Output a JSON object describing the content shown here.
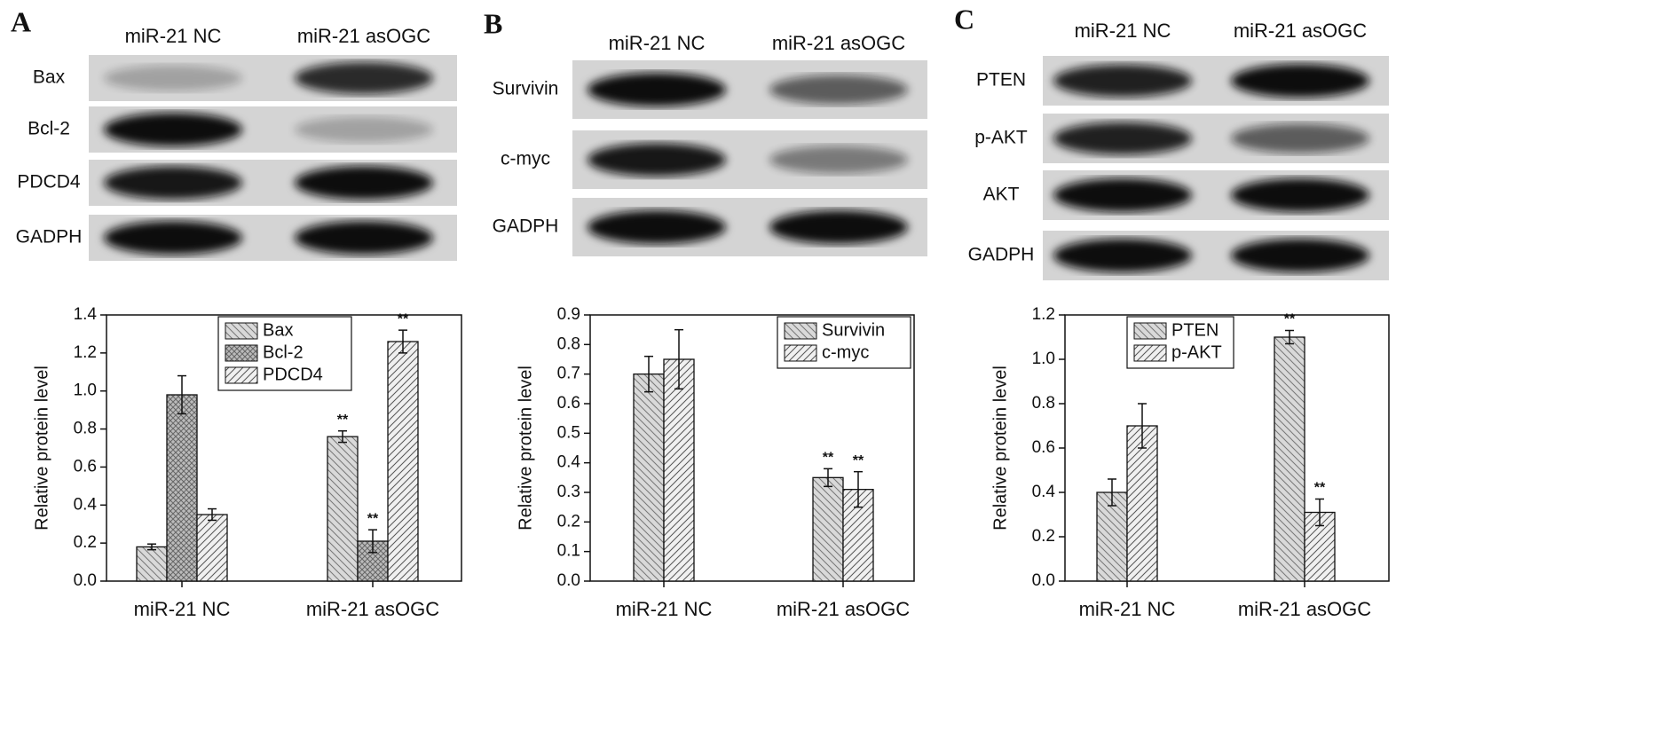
{
  "chart_data": [
    {
      "type": "bar",
      "panel": "A",
      "blot": {
        "columns": [
          "miR-21 NC",
          "miR-21 asOGC"
        ],
        "rows": [
          "Bax",
          "Bcl-2",
          "PDCD4",
          "GADPH"
        ]
      },
      "ylabel": "Relative protein level",
      "categories": [
        "miR-21 NC",
        "miR-21 asOGC"
      ],
      "series": [
        {
          "name": "Bax",
          "color": "#d9d9d9",
          "hatch": "backslash",
          "values": [
            0.18,
            0.76
          ],
          "errors": [
            0.015,
            0.03
          ],
          "annotations": [
            null,
            "**"
          ]
        },
        {
          "name": "Bcl-2",
          "color": "#d9d9d9",
          "hatch": "cross",
          "values": [
            0.98,
            0.21
          ],
          "errors": [
            0.1,
            0.06
          ],
          "annotations": [
            null,
            "**"
          ]
        },
        {
          "name": "PDCD4",
          "color": "#d9d9d9",
          "hatch": "slash",
          "values": [
            0.35,
            1.26
          ],
          "errors": [
            0.03,
            0.06
          ],
          "annotations": [
            null,
            "**"
          ]
        }
      ],
      "ylim": [
        0,
        1.4
      ],
      "yticks": [
        {
          "value": 0,
          "label": "0.0"
        },
        0.2,
        0.4,
        0.6,
        0.8,
        {
          "value": 1,
          "label": "1.0"
        },
        1.2,
        1.4
      ]
    },
    {
      "type": "bar",
      "panel": "B",
      "blot": {
        "columns": [
          "miR-21 NC",
          "miR-21 asOGC"
        ],
        "rows": [
          "Survivin",
          "c-myc",
          "GADPH"
        ]
      },
      "ylabel": "Relative protein level",
      "categories": [
        "miR-21 NC",
        "miR-21 asOGC"
      ],
      "series": [
        {
          "name": "Survivin",
          "color": "#d9d9d9",
          "hatch": "backslash",
          "values": [
            0.7,
            0.35
          ],
          "errors": [
            0.06,
            0.03
          ],
          "annotations": [
            null,
            "**"
          ]
        },
        {
          "name": "c-myc",
          "color": "#d9d9d9",
          "hatch": "slash",
          "values": [
            0.75,
            0.31
          ],
          "errors": [
            0.1,
            0.06
          ],
          "annotations": [
            null,
            "**"
          ]
        }
      ],
      "ylim": [
        0,
        0.9
      ],
      "yticks": [
        {
          "value": 0,
          "label": "0.0"
        },
        0.1,
        0.2,
        0.3,
        0.4,
        0.5,
        0.6,
        0.7,
        0.8,
        0.9
      ]
    },
    {
      "type": "bar",
      "panel": "C",
      "blot": {
        "columns": [
          "miR-21 NC",
          "miR-21 asOGC"
        ],
        "rows": [
          "PTEN",
          "p-AKT",
          "AKT",
          "GADPH"
        ]
      },
      "ylabel": "Relative protein level",
      "categories": [
        "miR-21 NC",
        "miR-21 asOGC"
      ],
      "series": [
        {
          "name": "PTEN",
          "color": "#d9d9d9",
          "hatch": "backslash",
          "values": [
            0.4,
            1.1
          ],
          "errors": [
            0.06,
            0.03
          ],
          "annotations": [
            null,
            "**"
          ]
        },
        {
          "name": "p-AKT",
          "color": "#d9d9d9",
          "hatch": "slash",
          "values": [
            0.7,
            0.31
          ],
          "errors": [
            0.1,
            0.06
          ],
          "annotations": [
            null,
            "**"
          ]
        }
      ],
      "ylim": [
        0,
        1.2
      ],
      "yticks": [
        {
          "value": 0,
          "label": "0.0"
        },
        0.2,
        0.4,
        0.6,
        0.8,
        {
          "value": 1,
          "label": "1.0"
        },
        1.2
      ]
    }
  ]
}
